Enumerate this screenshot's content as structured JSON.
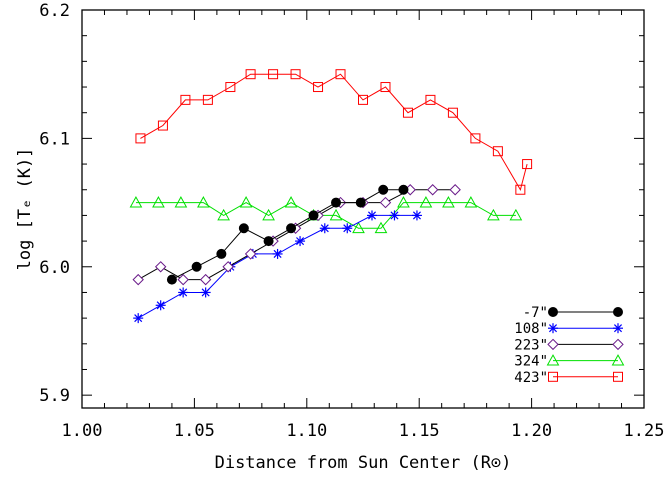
{
  "chart_data": {
    "type": "line",
    "xlabel": "Distance from Sun Center (R⊙)",
    "ylabel": "log [Tₑ (K)]",
    "xlim": [
      1.0,
      1.25
    ],
    "ylim": [
      5.89,
      6.2
    ],
    "x_ticks": [
      "1.00",
      "1.05",
      "1.10",
      "1.15",
      "1.20",
      "1.25"
    ],
    "y_ticks": [
      "5.9",
      "6.0",
      "6.1",
      "6.2"
    ],
    "legend_position": "bottom-right",
    "series": [
      {
        "name": "-7\"",
        "color": "#000000",
        "marker": "filled-circle",
        "x": [
          1.04,
          1.051,
          1.062,
          1.072,
          1.083,
          1.093,
          1.103,
          1.113,
          1.124,
          1.134,
          1.143
        ],
        "y": [
          5.99,
          6.0,
          6.01,
          6.03,
          6.02,
          6.03,
          6.04,
          6.05,
          6.05,
          6.06,
          6.06
        ]
      },
      {
        "name": "108\"",
        "color": "#0000ff",
        "marker": "asterisk",
        "x": [
          1.025,
          1.035,
          1.045,
          1.055,
          1.066,
          1.076,
          1.087,
          1.097,
          1.108,
          1.118,
          1.129,
          1.139,
          1.149
        ],
        "y": [
          5.96,
          5.97,
          5.98,
          5.98,
          6.0,
          6.01,
          6.01,
          6.02,
          6.03,
          6.03,
          6.04,
          6.04,
          6.04
        ]
      },
      {
        "name": "223\"",
        "color": "#6a1b8a",
        "marker": "open-diamond",
        "x": [
          1.025,
          1.035,
          1.045,
          1.055,
          1.065,
          1.075,
          1.085,
          1.095,
          1.105,
          1.115,
          1.125,
          1.135,
          1.146,
          1.156,
          1.166
        ],
        "y": [
          5.99,
          6.0,
          5.99,
          5.99,
          6.0,
          6.01,
          6.02,
          6.03,
          6.04,
          6.05,
          6.05,
          6.05,
          6.06,
          6.06,
          6.06
        ],
        "line_color": "#000000"
      },
      {
        "name": "324\"",
        "color": "#00e000",
        "marker": "open-triangle",
        "x": [
          1.024,
          1.034,
          1.044,
          1.054,
          1.063,
          1.073,
          1.083,
          1.093,
          1.103,
          1.113,
          1.123,
          1.133,
          1.143,
          1.153,
          1.163,
          1.173,
          1.183,
          1.193
        ],
        "y": [
          6.05,
          6.05,
          6.05,
          6.05,
          6.04,
          6.05,
          6.04,
          6.05,
          6.04,
          6.04,
          6.03,
          6.03,
          6.05,
          6.05,
          6.05,
          6.05,
          6.04,
          6.04
        ]
      },
      {
        "name": "423\"",
        "color": "#ff0000",
        "marker": "open-square",
        "x": [
          1.026,
          1.036,
          1.046,
          1.056,
          1.066,
          1.075,
          1.085,
          1.095,
          1.105,
          1.115,
          1.125,
          1.135,
          1.145,
          1.155,
          1.165,
          1.175,
          1.185,
          1.195
        ],
        "y": [
          6.1,
          6.11,
          6.13,
          6.13,
          6.14,
          6.15,
          6.15,
          6.15,
          6.14,
          6.15,
          6.13,
          6.14,
          6.12,
          6.13,
          6.12,
          6.1,
          6.09,
          6.06
        ],
        "x_extra": [
          1.198
        ],
        "y_extra": [
          6.08
        ]
      }
    ]
  }
}
